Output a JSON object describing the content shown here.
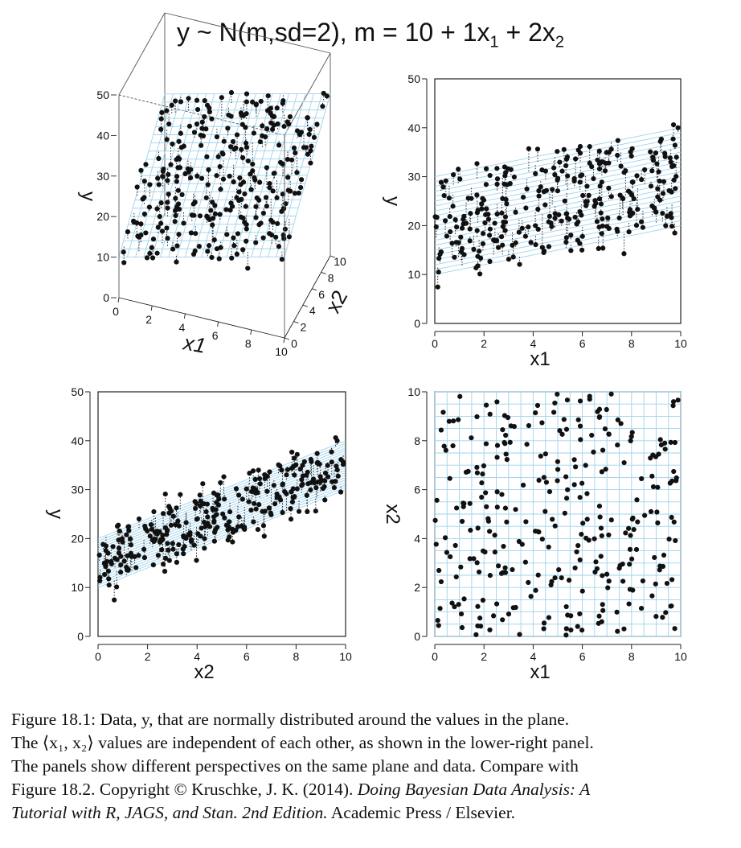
{
  "title": {
    "prefix": "y ~ N(m,sd=2), m = 10 + 1x",
    "sub1": "1",
    "mid": " + 2x",
    "sub2": "2"
  },
  "colors": {
    "plane": "#9fd3ee",
    "point": "#111111",
    "axis": "#222222",
    "box": "#555555"
  },
  "chart_data": [
    {
      "type": "scatter",
      "panel": "3d-perspective",
      "xlabel": "x1",
      "ylabel": "y",
      "zlabel": "x2",
      "x1_ticks": [
        0,
        2,
        4,
        6,
        8,
        10
      ],
      "x2_ticks": [
        0,
        2,
        4,
        6,
        8,
        10
      ],
      "y_ticks": [
        0,
        10,
        20,
        30,
        40,
        50
      ],
      "ylim": [
        0,
        50
      ],
      "plane": {
        "intercept": 10,
        "b1": 1,
        "b2": 2
      },
      "n_points": 300
    },
    {
      "type": "scatter",
      "panel": "y-vs-x1",
      "xlabel": "x1",
      "ylabel": "y",
      "xlim": [
        0,
        10
      ],
      "ylim": [
        0,
        50
      ],
      "xticks": [
        0,
        2,
        4,
        6,
        8,
        10
      ],
      "yticks": [
        0,
        10,
        20,
        30,
        40,
        50
      ]
    },
    {
      "type": "scatter",
      "panel": "y-vs-x2",
      "xlabel": "x2",
      "ylabel": "y",
      "xlim": [
        0,
        10
      ],
      "ylim": [
        0,
        50
      ],
      "xticks": [
        0,
        2,
        4,
        6,
        8,
        10
      ],
      "yticks": [
        0,
        10,
        20,
        30,
        40,
        50
      ]
    },
    {
      "type": "scatter",
      "panel": "x2-vs-x1",
      "xlabel": "x1",
      "ylabel": "x2",
      "xlim": [
        0,
        10
      ],
      "ylim": [
        0,
        10
      ],
      "xticks": [
        0,
        2,
        4,
        6,
        8,
        10
      ],
      "yticks": [
        0,
        2,
        4,
        6,
        8,
        10
      ]
    }
  ],
  "caption": {
    "line1": "Figure 18.1: Data, y, that are normally distributed around the values in the plane.",
    "line2": "The ⟨x₁, x₂⟩ values are independent of each other, as shown in the lower-right panel.",
    "line3": "The panels show different perspectives on the same plane and data.  Compare with",
    "line4_a": "Figure 18.2.  Copyright © Kruschke, J. K. (2014). ",
    "line4_b": "Doing Bayesian Data Analysis: A",
    "line5_a": "Tutorial with R, JAGS, and Stan. 2nd Edition.",
    "line5_b": " Academic Press / Elsevier."
  }
}
